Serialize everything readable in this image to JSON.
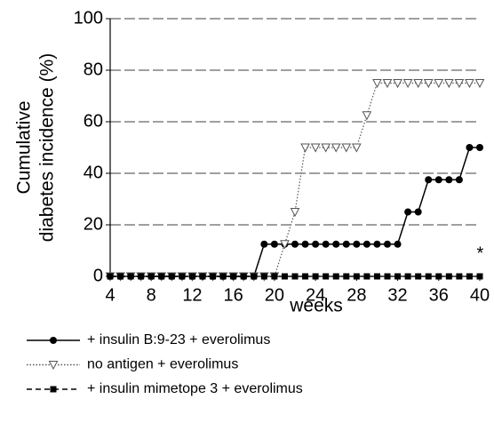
{
  "chart_data": {
    "type": "line",
    "xlabel": "weeks",
    "ylabel": [
      "Cumulative",
      "diabetes incidence (%)"
    ],
    "x": [
      4,
      5,
      6,
      7,
      8,
      9,
      10,
      11,
      12,
      13,
      14,
      15,
      16,
      17,
      18,
      19,
      20,
      21,
      22,
      23,
      24,
      25,
      26,
      27,
      28,
      29,
      30,
      31,
      32,
      33,
      34,
      35,
      36,
      37,
      38,
      39,
      40
    ],
    "xlim": [
      4,
      40
    ],
    "xticks": [
      4,
      8,
      12,
      16,
      20,
      24,
      28,
      32,
      36,
      40
    ],
    "ylim": [
      0,
      100
    ],
    "yticks": [
      0,
      20,
      40,
      60,
      80,
      100
    ],
    "grid": true,
    "series": [
      {
        "name": "+ insulin B:9-23 + everolimus",
        "color": "#000000",
        "marker": "circle",
        "line_style": "solid",
        "values": [
          0,
          0,
          0,
          0,
          0,
          0,
          0,
          0,
          0,
          0,
          0,
          0,
          0,
          0,
          0,
          12.5,
          12.5,
          12.5,
          12.5,
          12.5,
          12.5,
          12.5,
          12.5,
          12.5,
          12.5,
          12.5,
          12.5,
          12.5,
          12.5,
          25,
          25,
          37.5,
          37.5,
          37.5,
          37.5,
          50,
          50
        ]
      },
      {
        "name": "no antigen + everolimus",
        "color": "#555555",
        "marker": "triangle-down",
        "line_style": "dotted",
        "values": [
          0,
          0,
          0,
          0,
          0,
          0,
          0,
          0,
          0,
          0,
          0,
          0,
          0,
          0,
          0,
          0,
          0,
          12.5,
          25,
          50,
          50,
          50,
          50,
          50,
          50,
          62.5,
          75,
          75,
          75,
          75,
          75,
          75,
          75,
          75,
          75,
          75,
          75
        ]
      },
      {
        "name": "+ insulin mimetope 3 + everolimus",
        "color": "#000000",
        "marker": "square",
        "line_style": "dashed",
        "values": [
          0,
          0,
          0,
          0,
          0,
          0,
          0,
          0,
          0,
          0,
          0,
          0,
          0,
          0,
          0,
          0,
          0,
          0,
          0,
          0,
          0,
          0,
          0,
          0,
          0,
          0,
          0,
          0,
          0,
          0,
          0,
          0,
          0,
          0,
          0,
          0,
          0
        ]
      }
    ],
    "annotations": [
      {
        "text": "*",
        "x": 39,
        "y": 10
      }
    ]
  }
}
